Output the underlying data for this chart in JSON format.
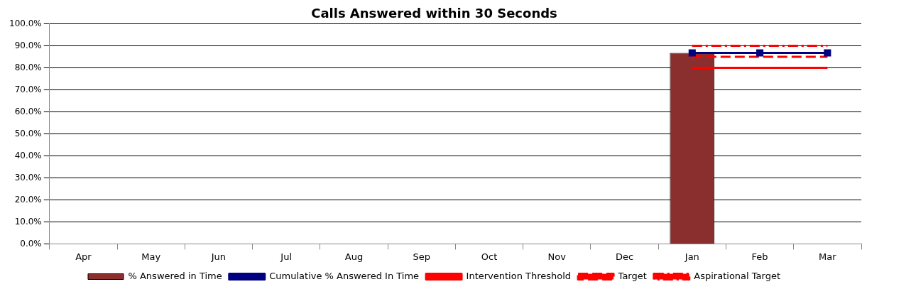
{
  "chart_data": {
    "type": "bar",
    "title": "Calls Answered within 30 Seconds",
    "categories": [
      "Apr",
      "May",
      "Jun",
      "Jul",
      "Aug",
      "Sep",
      "Oct",
      "Nov",
      "Dec",
      "Jan",
      "Feb",
      "Mar"
    ],
    "series": [
      {
        "name": "% Answered in Time",
        "color": "#8b2e2e",
        "values": [
          null,
          null,
          null,
          null,
          null,
          null,
          null,
          null,
          null,
          86.8,
          null,
          null
        ]
      },
      {
        "name": "Cumulative % Answered In Time",
        "type": "line",
        "color": "#000080",
        "marker": "square",
        "line_style": "solid",
        "values": [
          null,
          null,
          null,
          null,
          null,
          null,
          null,
          null,
          null,
          86.8,
          86.8,
          86.8
        ]
      },
      {
        "name": "Intervention Threshold",
        "type": "line",
        "color": "#ff0000",
        "marker": "none",
        "line_style": "solid",
        "values": [
          null,
          null,
          null,
          null,
          null,
          null,
          null,
          null,
          null,
          80,
          80,
          80
        ]
      },
      {
        "name": "Target",
        "type": "line",
        "color": "#ff0000",
        "marker": "none",
        "line_style": "dashed",
        "values": [
          null,
          null,
          null,
          null,
          null,
          null,
          null,
          null,
          null,
          85,
          85,
          85
        ]
      },
      {
        "name": "Aspirational Target",
        "type": "line",
        "color": "#ff0000",
        "marker": "none",
        "line_style": "dashdot",
        "values": [
          null,
          null,
          null,
          null,
          null,
          null,
          null,
          null,
          null,
          90,
          90,
          90
        ]
      }
    ],
    "ylim": [
      0,
      100
    ],
    "yticks": [
      {
        "value": 0,
        "label": "0.0%"
      },
      {
        "value": 10,
        "label": "10.0%"
      },
      {
        "value": 20,
        "label": "20.0%"
      },
      {
        "value": 30,
        "label": "30.0%"
      },
      {
        "value": 40,
        "label": "40.0%"
      },
      {
        "value": 50,
        "label": "50.0%"
      },
      {
        "value": 60,
        "label": "60.0%"
      },
      {
        "value": 70,
        "label": "70.0%"
      },
      {
        "value": 80,
        "label": "80.0%"
      },
      {
        "value": 90,
        "label": "90.0%"
      },
      {
        "value": 100,
        "label": "100.0%"
      }
    ],
    "grid": "y",
    "legend": "bottom"
  }
}
